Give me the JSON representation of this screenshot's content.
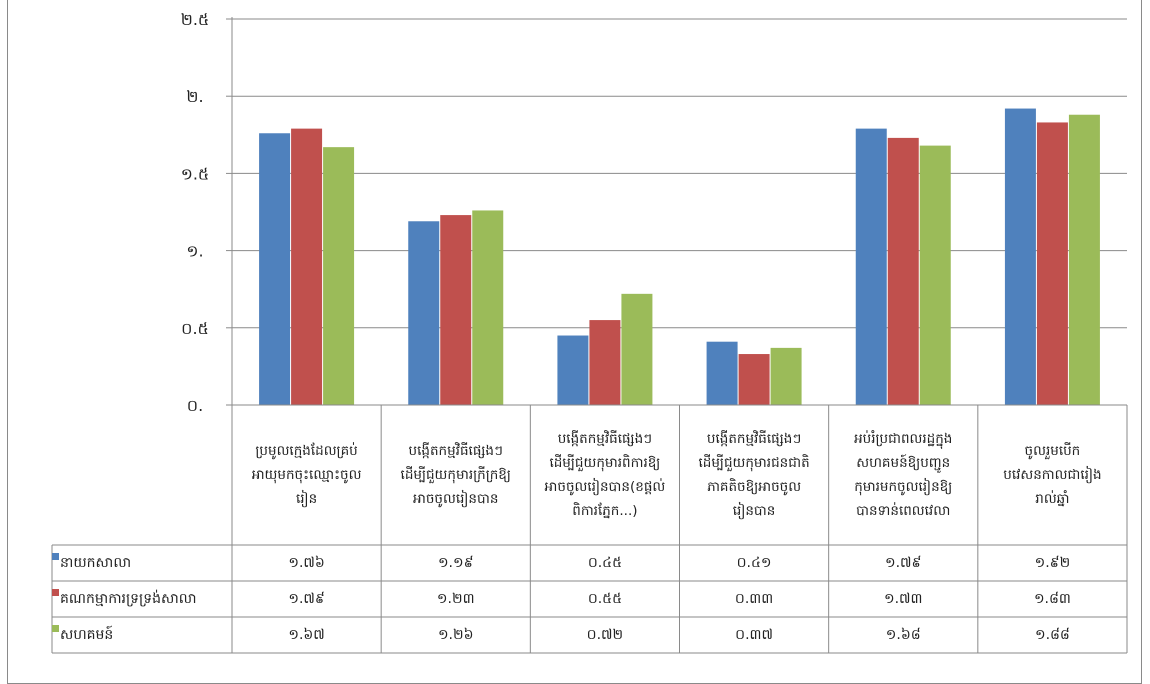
{
  "chart_data": {
    "type": "bar",
    "y_ticks": [
      "០.",
      "០.៥",
      "១.",
      "១.៥",
      "២.",
      "២.៥"
    ],
    "ylim": [
      0,
      2.5
    ],
    "grid": true,
    "legend": "table-left",
    "categories": [
      [
        "ប្រមូលក្មេងដែលគ្រប់",
        "អាយុមកចុះឈ្មោះចូល",
        "រៀន"
      ],
      [
        "បង្កើតកម្មវិធីផ្សេងៗ",
        "ដើម្បីជួយកុមារក្រីក្រឱ្យ",
        "អាចចូលរៀនបាន"
      ],
      [
        "បង្កើតកម្មវិធីផ្សេងៗ",
        "ដើម្បីជួយកុមារពិការឱ្យ",
        "អាចចូលរៀនបាន(ខផ្តល់",
        "ពិការភ្នែក...)"
      ],
      [
        "បង្កើតកម្មវិធីផ្សេងៗ",
        "ដើម្បីជួយកុមារជនជាតិ",
        "ភាគតិចឱ្យអាចចូល",
        "រៀនបាន"
      ],
      [
        "អប់រំប្រជាពលរដ្ឋក្នុង",
        "សហគមន៍ឱ្យបញ្ជូន",
        "កុមារមកចូលរៀនឱ្យ",
        "បានទាន់ពេលវេលា"
      ],
      [
        "ចូលរួមបើក",
        "បវេសនកាលជារៀង",
        "រាល់ឆ្នាំ"
      ]
    ],
    "series": [
      {
        "name": "នាយកសាលា",
        "color": "#4f81bd",
        "values": [
          1.76,
          1.19,
          0.45,
          0.41,
          1.79,
          1.92
        ],
        "labels": [
          "១.៧៦",
          "១.១៩",
          "០.៤៥",
          "០.៤១",
          "១.៧៩",
          "១.៩២"
        ]
      },
      {
        "name": "គណកម្មាការទ្រទ្រង់សាលា",
        "color": "#c0504d",
        "values": [
          1.79,
          1.23,
          0.55,
          0.33,
          1.73,
          1.83
        ],
        "labels": [
          "១.៧៩",
          "១.២៣",
          "០.៥៥",
          "០.៣៣",
          "១.៧៣",
          "១.៨៣"
        ]
      },
      {
        "name": "សហគមន៍",
        "color": "#9bbb59",
        "values": [
          1.67,
          1.26,
          0.72,
          0.37,
          1.68,
          1.88
        ],
        "labels": [
          "១.៦៧",
          "១.២៦",
          "០.៧២",
          "០.៣៧",
          "១.៦៨",
          "១.៨៨"
        ]
      }
    ]
  }
}
